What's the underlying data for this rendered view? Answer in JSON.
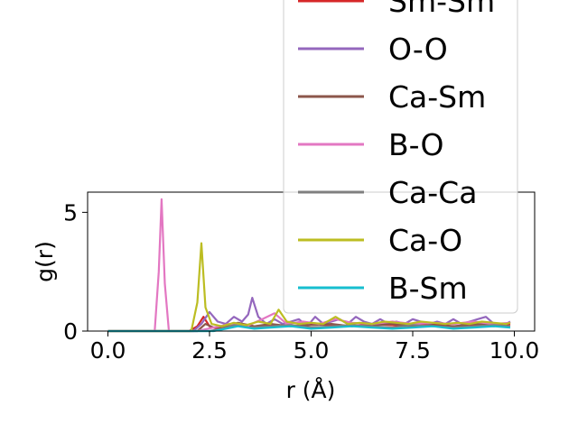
{
  "chart_data": {
    "type": "line",
    "title": "",
    "xlabel": "r (Å)",
    "ylabel": "g(r)",
    "xlim": [
      -0.5,
      10.5
    ],
    "ylim": [
      0,
      5.85
    ],
    "xticks": [
      0.0,
      2.5,
      5.0,
      7.5,
      10.0
    ],
    "xtick_labels": [
      "0.0",
      "2.5",
      "5.0",
      "7.5",
      "10.0"
    ],
    "yticks": [
      0,
      5
    ],
    "ytick_labels": [
      "0",
      "5"
    ],
    "grid": false,
    "legend_position": "upper-right",
    "series": [
      {
        "name": "Sm-Sm",
        "color": "#d62728",
        "x": [
          0,
          2.0,
          2.2,
          2.35,
          2.5,
          2.7,
          3.0,
          3.3,
          3.6,
          4.0,
          4.5,
          5.0,
          5.5,
          6.0,
          6.5,
          7.0,
          7.5,
          8.0,
          8.5,
          9.0,
          9.5,
          9.9
        ],
        "y": [
          0,
          0,
          0.2,
          0.6,
          0.2,
          0.1,
          0.15,
          0.3,
          0.2,
          0.25,
          0.2,
          0.3,
          0.25,
          0.2,
          0.3,
          0.25,
          0.2,
          0.3,
          0.2,
          0.25,
          0.2,
          0.3
        ]
      },
      {
        "name": "O-O",
        "color": "#9467bd",
        "x": [
          0,
          2.1,
          2.3,
          2.5,
          2.7,
          2.9,
          3.1,
          3.3,
          3.45,
          3.55,
          3.7,
          3.9,
          4.1,
          4.3,
          4.5,
          4.7,
          4.9,
          5.1,
          5.3,
          5.5,
          5.7,
          5.9,
          6.1,
          6.3,
          6.5,
          6.7,
          6.9,
          7.1,
          7.3,
          7.5,
          7.7,
          7.9,
          8.1,
          8.3,
          8.5,
          8.7,
          8.9,
          9.1,
          9.3,
          9.5,
          9.7,
          9.9
        ],
        "y": [
          0,
          0,
          0.3,
          0.8,
          0.4,
          0.3,
          0.6,
          0.4,
          0.7,
          1.4,
          0.6,
          0.3,
          0.5,
          0.3,
          0.4,
          0.5,
          0.2,
          0.6,
          0.3,
          0.4,
          0.5,
          0.3,
          0.6,
          0.4,
          0.3,
          0.5,
          0.3,
          0.4,
          0.3,
          0.5,
          0.4,
          0.3,
          0.4,
          0.3,
          0.5,
          0.3,
          0.4,
          0.5,
          0.6,
          0.3,
          0.2,
          0.4
        ]
      },
      {
        "name": "Ca-Sm",
        "color": "#8c564b",
        "x": [
          0,
          2.2,
          2.4,
          2.6,
          2.9,
          3.2,
          3.6,
          4.0,
          4.5,
          5.0,
          5.5,
          6.0,
          6.5,
          7.0,
          7.5,
          8.0,
          8.5,
          9.0,
          9.5,
          9.9
        ],
        "y": [
          0,
          0,
          0.3,
          0.15,
          0.2,
          0.35,
          0.2,
          0.3,
          0.2,
          0.25,
          0.3,
          0.2,
          0.25,
          0.3,
          0.2,
          0.25,
          0.2,
          0.3,
          0.25,
          0.2
        ]
      },
      {
        "name": "B-O",
        "color": "#e377c2",
        "x": [
          0,
          1.15,
          1.25,
          1.32,
          1.4,
          1.5,
          2.2,
          2.6,
          3.0,
          3.4,
          3.8,
          4.1,
          4.4,
          4.8,
          5.2,
          5.6,
          6.0,
          6.5,
          7.0,
          7.5,
          8.0,
          8.5,
          9.0,
          9.5,
          9.9
        ],
        "y": [
          0,
          0,
          2.5,
          5.55,
          2.0,
          0,
          0,
          0.15,
          0.3,
          0.2,
          0.5,
          0.75,
          0.3,
          0.4,
          0.3,
          0.5,
          0.35,
          0.3,
          0.4,
          0.3,
          0.35,
          0.3,
          0.4,
          0.3,
          0.35
        ]
      },
      {
        "name": "Ca-Ca",
        "color": "#7f7f7f",
        "x": [
          0,
          2.5,
          2.8,
          3.1,
          3.5,
          4.0,
          4.5,
          5.0,
          5.5,
          6.0,
          6.5,
          7.0,
          7.5,
          8.0,
          8.5,
          9.0,
          9.5,
          9.9
        ],
        "y": [
          0,
          0,
          0.1,
          0.25,
          0.15,
          0.2,
          0.25,
          0.15,
          0.2,
          0.25,
          0.2,
          0.15,
          0.25,
          0.2,
          0.15,
          0.2,
          0.25,
          0.2
        ]
      },
      {
        "name": "Ca-O",
        "color": "#bcbd22",
        "x": [
          0,
          2.05,
          2.2,
          2.3,
          2.4,
          2.55,
          2.8,
          3.1,
          3.4,
          3.7,
          4.0,
          4.2,
          4.4,
          4.7,
          5.0,
          5.3,
          5.6,
          5.9,
          6.2,
          6.5,
          6.8,
          7.1,
          7.4,
          7.7,
          8.0,
          8.3,
          8.6,
          8.9,
          9.2,
          9.5,
          9.8,
          9.9
        ],
        "y": [
          0,
          0,
          1.2,
          3.7,
          1.0,
          0.3,
          0.2,
          0.35,
          0.25,
          0.4,
          0.3,
          0.9,
          0.4,
          0.3,
          0.35,
          0.3,
          0.6,
          0.3,
          0.35,
          0.3,
          0.4,
          0.35,
          0.3,
          0.4,
          0.35,
          0.3,
          0.35,
          0.3,
          0.4,
          0.35,
          0.3,
          0.35
        ]
      },
      {
        "name": "B-Sm",
        "color": "#17becf",
        "x": [
          0,
          2.6,
          2.9,
          3.2,
          3.6,
          4.0,
          4.5,
          5.0,
          5.5,
          6.0,
          6.5,
          7.0,
          7.5,
          8.0,
          8.5,
          9.0,
          9.5,
          9.9
        ],
        "y": [
          0,
          0,
          0.1,
          0.2,
          0.1,
          0.15,
          0.2,
          0.1,
          0.15,
          0.2,
          0.15,
          0.1,
          0.15,
          0.2,
          0.1,
          0.15,
          0.2,
          0.15
        ]
      }
    ]
  }
}
